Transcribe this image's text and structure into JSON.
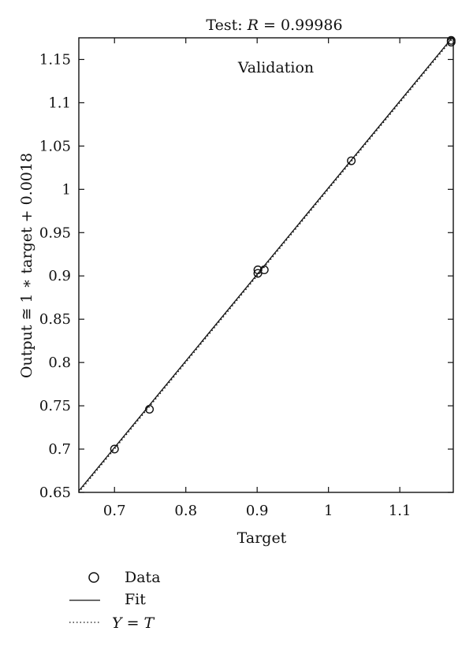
{
  "chart_data": {
    "type": "scatter",
    "title_prefix": "Test: ",
    "title_var": "R",
    "title_suffix": " = 0.99986",
    "annotation": "Validation",
    "xlabel": "Target",
    "ylabel": "Output ≅ 1 ∗ target + 0.0018",
    "xlim": [
      0.65,
      1.175
    ],
    "ylim": [
      0.65,
      1.175
    ],
    "x_ticks": [
      0.7,
      0.8,
      0.9,
      1,
      1.1
    ],
    "x_tick_labels": [
      "0.7",
      "0.8",
      "0.9",
      "1",
      "1.1"
    ],
    "y_ticks": [
      0.65,
      0.7,
      0.75,
      0.8,
      0.85,
      0.9,
      0.95,
      1,
      1.05,
      1.1,
      1.15
    ],
    "y_tick_labels": [
      "0.65",
      "0.7",
      "0.75",
      "0.8",
      "0.85",
      "0.9",
      "0.95",
      "1",
      "1.05",
      "1.1",
      "1.15"
    ],
    "grid": false,
    "series": [
      {
        "name": "Data",
        "points": [
          {
            "x": 0.7,
            "y": 0.7
          },
          {
            "x": 0.749,
            "y": 0.746
          },
          {
            "x": 0.901,
            "y": 0.907
          },
          {
            "x": 0.901,
            "y": 0.903
          },
          {
            "x": 0.91,
            "y": 0.907
          },
          {
            "x": 1.032,
            "y": 1.033
          },
          {
            "x": 1.172,
            "y": 1.172
          },
          {
            "x": 1.172,
            "y": 1.17
          }
        ]
      },
      {
        "name": "Fit",
        "slope": 1,
        "intercept": 0.0018
      },
      {
        "name": "Y = T",
        "slope": 1,
        "intercept": 0
      }
    ],
    "legend": {
      "placement": "bottom-left",
      "entries": [
        {
          "label": "Data",
          "marker": "circle"
        },
        {
          "label": "Fit",
          "marker": "solid-line"
        },
        {
          "label_var_1": "Y",
          "label_mid": " = ",
          "label_var_2": "T",
          "marker": "dotted-line"
        }
      ]
    }
  }
}
